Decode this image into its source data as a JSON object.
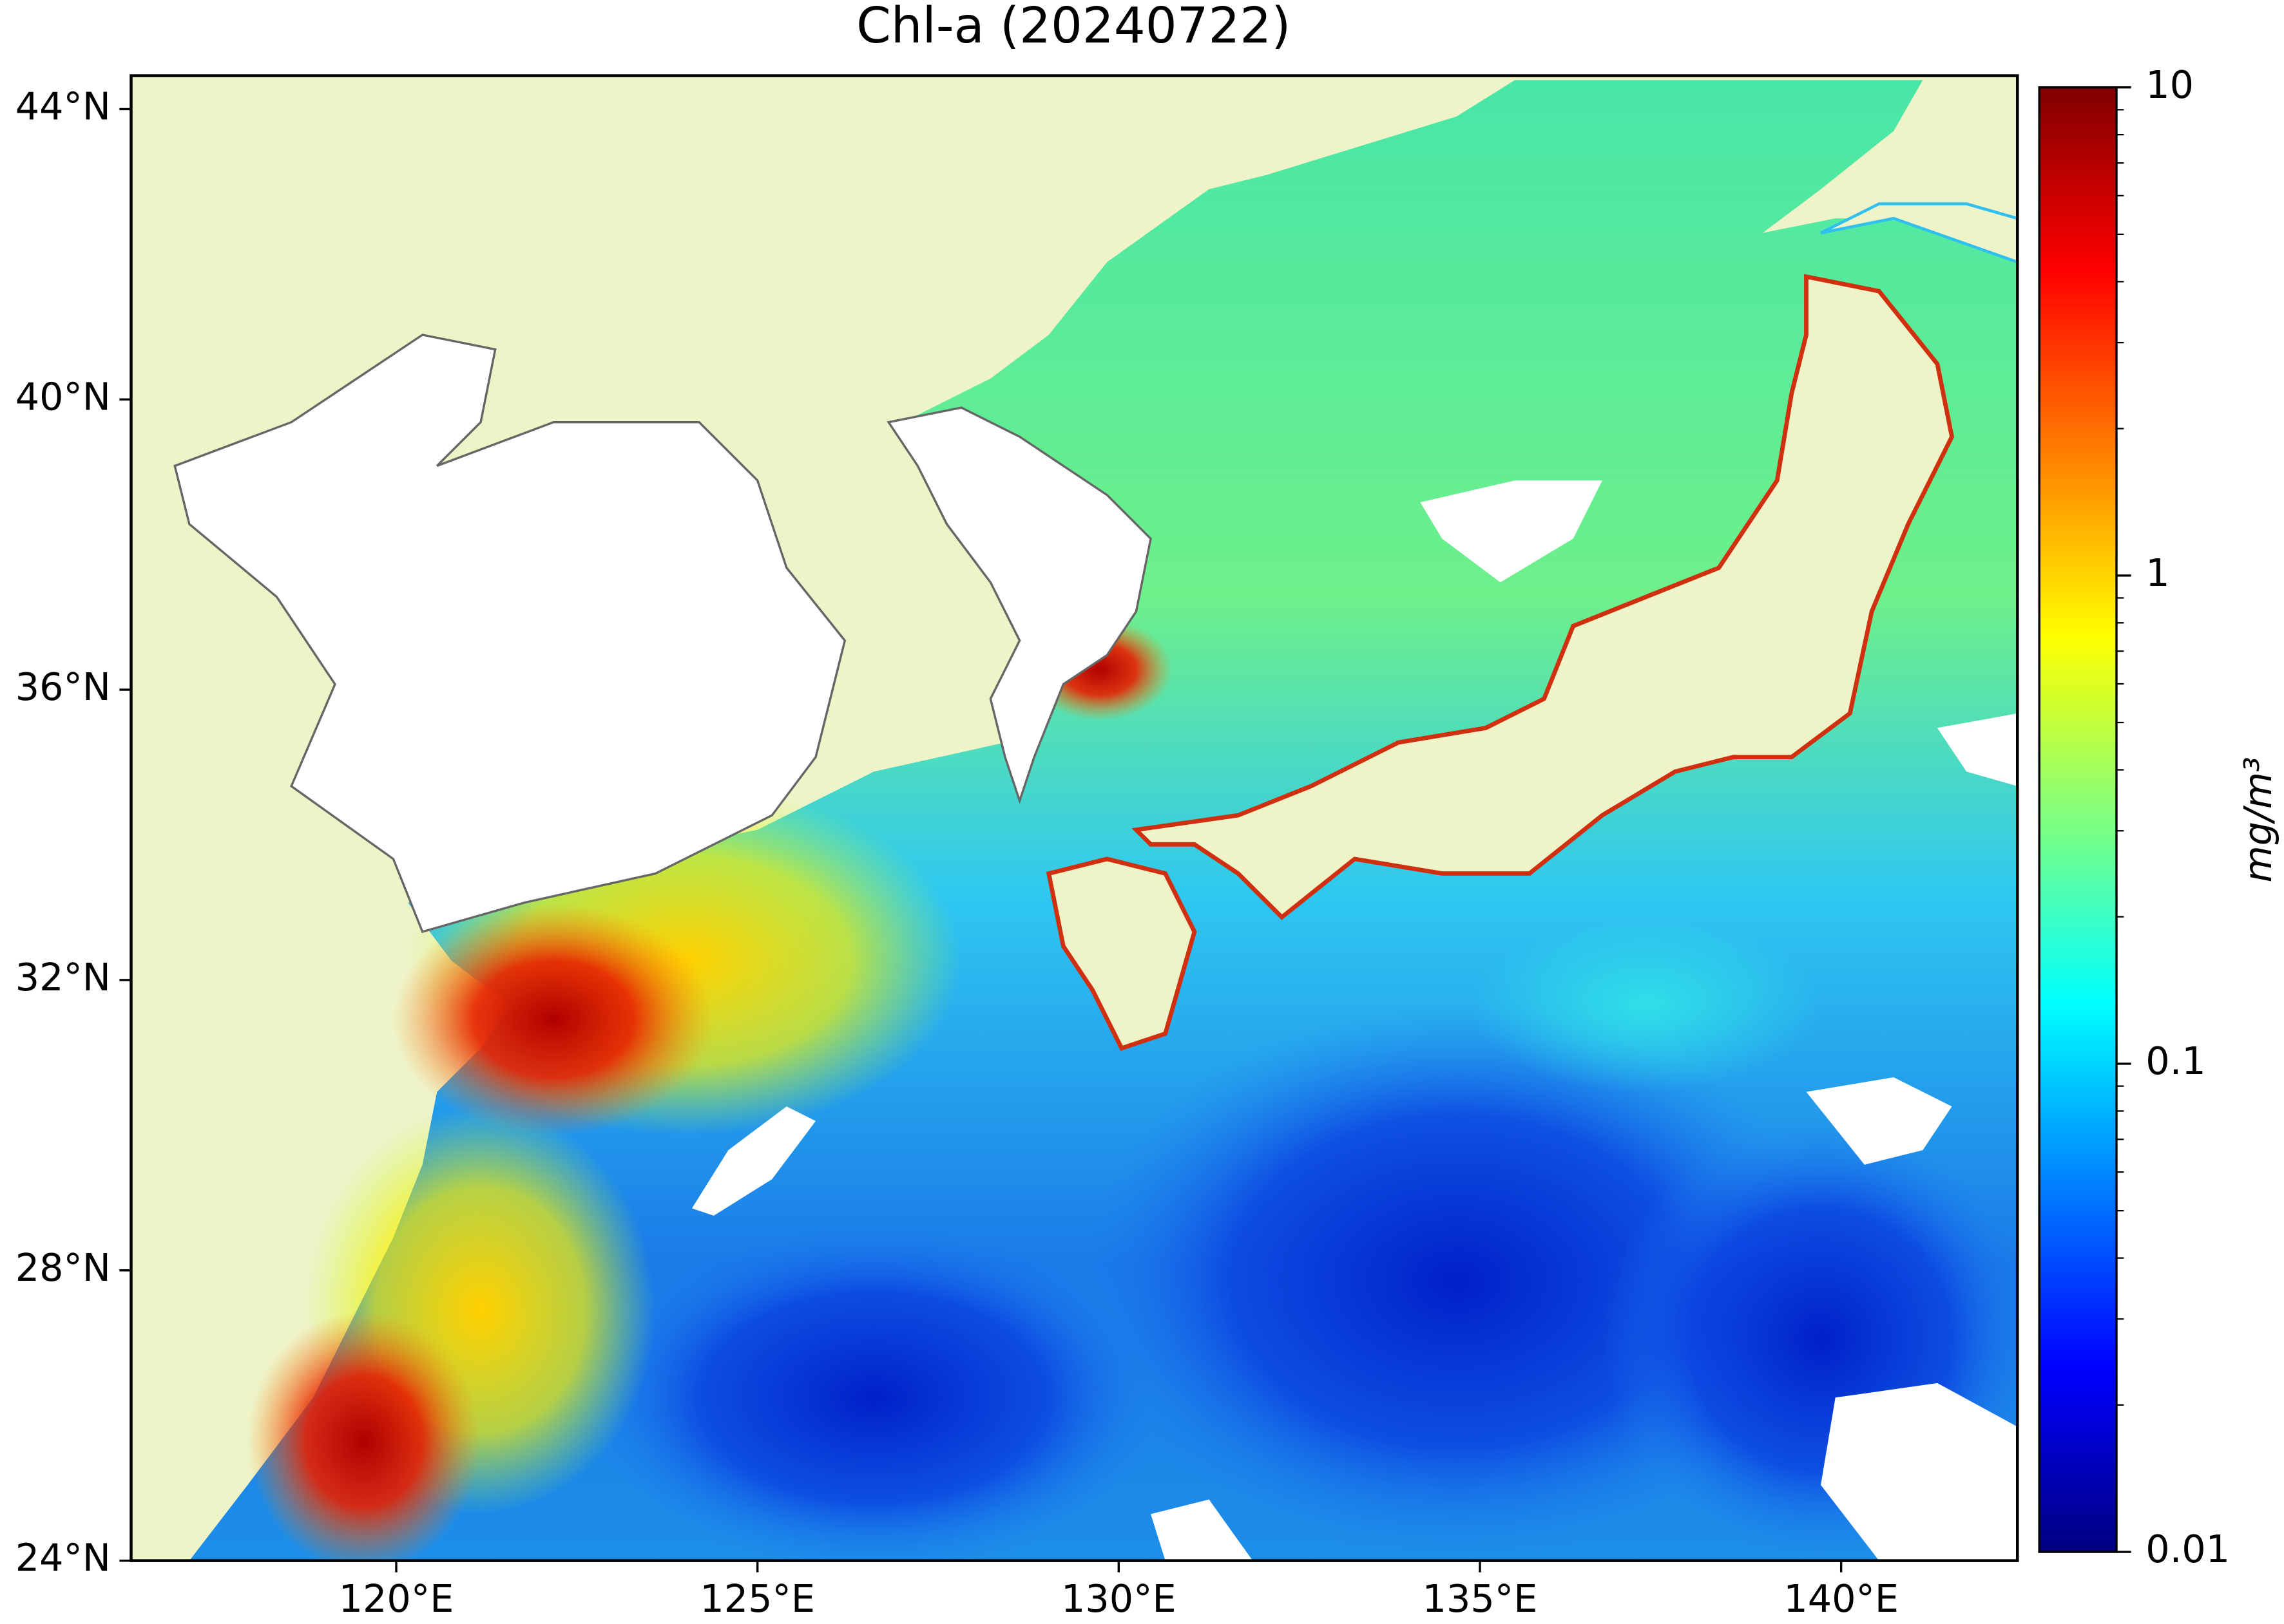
{
  "chart_data": {
    "type": "map",
    "title": "Chl-a (20240722)",
    "xlim": [
      116.33,
      142.44
    ],
    "ylim": [
      24,
      44.46
    ],
    "xticks": [
      {
        "value": 120,
        "label": "120°E"
      },
      {
        "value": 125,
        "label": "125°E"
      },
      {
        "value": 130,
        "label": "130°E"
      },
      {
        "value": 135,
        "label": "135°E"
      },
      {
        "value": 140,
        "label": "140°E"
      }
    ],
    "yticks": [
      {
        "value": 24,
        "label": "24°N"
      },
      {
        "value": 28,
        "label": "28°N"
      },
      {
        "value": 32,
        "label": "32°N"
      },
      {
        "value": 36,
        "label": "36°N"
      },
      {
        "value": 40,
        "label": "40°N"
      },
      {
        "value": 44,
        "label": "44°N"
      }
    ],
    "colorbar": {
      "label": "mg/m³",
      "clim": [
        0.01,
        10
      ],
      "log": true,
      "colormap": "jet",
      "ticks": [
        0.01,
        0.1,
        1,
        10
      ]
    }
  }
}
